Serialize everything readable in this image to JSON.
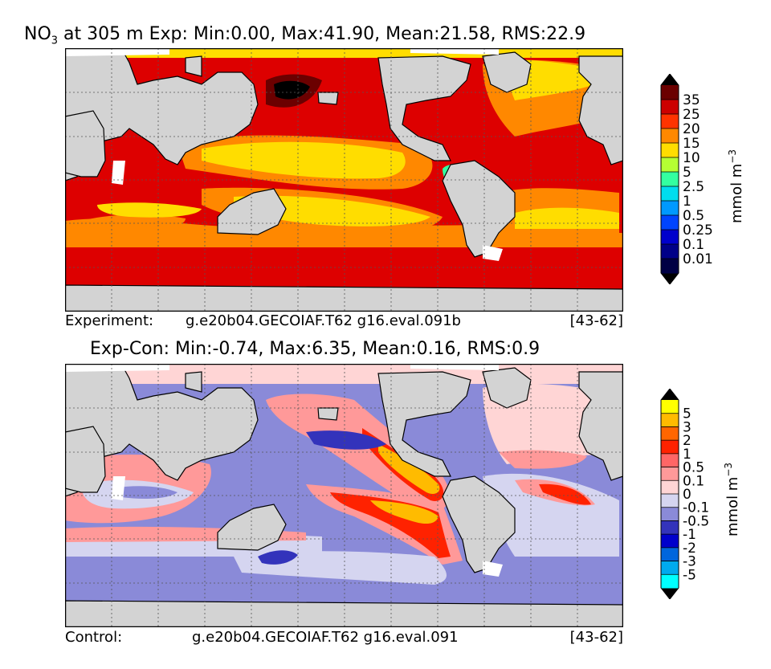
{
  "top": {
    "title_var": "NO",
    "title_sub": "3",
    "title_rest": " at 305 m Exp: Min:0.00, Max:41.90, Mean:21.58, RMS:22.9",
    "caption_label": "Experiment:",
    "caption_case": "g.e20b04.GECOIAF.T62 g16.eval.091b",
    "caption_years": "[43-62]",
    "unit_base": "mmol m",
    "unit_exp": "−3",
    "levels": [
      "35",
      "25",
      "20",
      "15",
      "10",
      "5",
      "2.5",
      "1",
      "0.5",
      "0.25",
      "0.1",
      "0.01"
    ],
    "colors": [
      "#6b0000",
      "#cc0000",
      "#ff3300",
      "#ff8800",
      "#ffdd00",
      "#b5ff33",
      "#33ffa0",
      "#00ddee",
      "#0099ff",
      "#0044ff",
      "#0000cc",
      "#000088",
      "#000044"
    ]
  },
  "bottom": {
    "title": "Exp-Con: Min:-0.74, Max:6.35, Mean:0.16, RMS:0.9",
    "caption_label": "Control:",
    "caption_case": "g.e20b04.GECOIAF.T62 g16.eval.091",
    "caption_years": "[43-62]",
    "unit_base": "mmol m",
    "unit_exp": "−3",
    "levels": [
      "5",
      "3",
      "2",
      "1",
      "0.5",
      "0.1",
      "0",
      "-0.1",
      "-0.5",
      "-1",
      "-2",
      "-3",
      "-5"
    ],
    "colors": [
      "#ffff00",
      "#ffbb00",
      "#ff6600",
      "#ff2200",
      "#ff6666",
      "#ff9999",
      "#ffd5d5",
      "#d5d5f0",
      "#8a8ad8",
      "#3333bb",
      "#0000cc",
      "#0066dd",
      "#00aaee",
      "#00ffff"
    ]
  }
}
